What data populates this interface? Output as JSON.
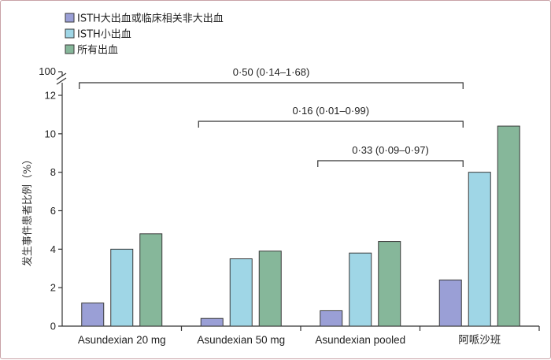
{
  "chart_data": {
    "type": "bar",
    "categories": [
      "Asundexian 20 mg",
      "Asundexian 50 mg",
      "Asundexian pooled",
      "阿哌沙班"
    ],
    "series": [
      {
        "name": "ISTH大出血或临床相关非大出血",
        "values": [
          1.2,
          0.4,
          0.8,
          2.4
        ],
        "color": "#9a9fd6"
      },
      {
        "name": "ISTH小出血",
        "values": [
          4.0,
          3.5,
          3.8,
          8.0
        ],
        "color": "#9fd6e6"
      },
      {
        "name": "所有出血",
        "values": [
          4.8,
          3.9,
          4.4,
          10.4
        ],
        "color": "#86b79a"
      }
    ],
    "ylabel": "发生事件患者比例（%）",
    "ylim": [
      0,
      12
    ],
    "yticks": [
      0,
      2,
      4,
      6,
      8,
      10,
      12
    ],
    "ybreak_label": "100",
    "legend_position": "top-left",
    "grid": false,
    "annotations": [
      {
        "text": "0·50 (0·14–1·68)",
        "from_category": 0,
        "to_category": 3
      },
      {
        "text": "0·16 (0·01–0·99)",
        "from_category": 1,
        "to_category": 3
      },
      {
        "text": "0·33 (0·09–0·97)",
        "from_category": 2,
        "to_category": 3
      }
    ]
  }
}
